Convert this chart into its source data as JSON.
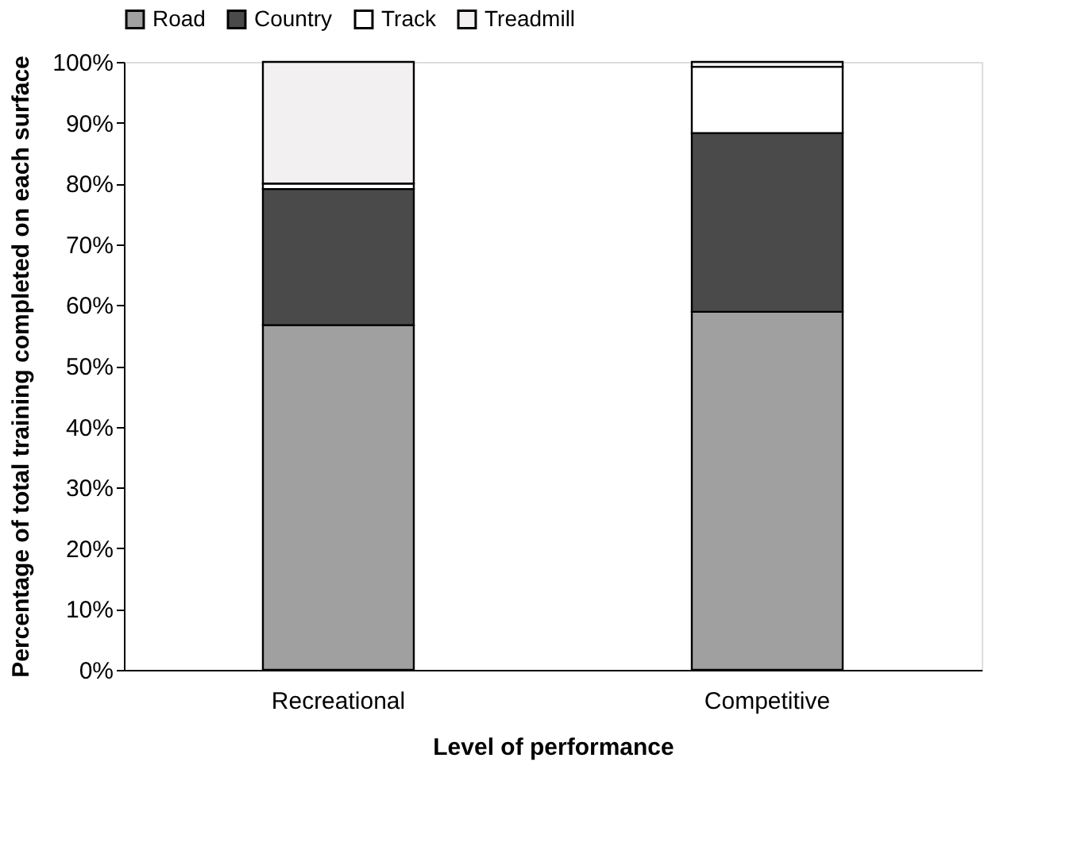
{
  "chart_data": {
    "type": "bar",
    "stacked": true,
    "categories": [
      "Recreational",
      "Competitive"
    ],
    "xlabel": "Level of performance",
    "ylabel": "Percentage of total training completed on each surface",
    "series": [
      {
        "name": "Road",
        "color": "#a0a0a0",
        "values": [
          56.7,
          58.9
        ]
      },
      {
        "name": "Country",
        "color": "#4a4a4a",
        "values": [
          22.4,
          29.4
        ]
      },
      {
        "name": "Track",
        "color": "#ffffff",
        "values": [
          0.9,
          10.9
        ]
      },
      {
        "name": "Treadmill",
        "color": "#f2f0f0",
        "values": [
          20.0,
          0.8
        ]
      }
    ],
    "ylim": [
      0,
      100
    ],
    "yticks": [
      {
        "value": 0,
        "label": "0%"
      },
      {
        "value": 10,
        "label": "10%"
      },
      {
        "value": 20,
        "label": "20%"
      },
      {
        "value": 30,
        "label": "30%"
      },
      {
        "value": 40,
        "label": "40%"
      },
      {
        "value": 50,
        "label": "50%"
      },
      {
        "value": 60,
        "label": "60%"
      },
      {
        "value": 70,
        "label": "70%"
      },
      {
        "value": 80,
        "label": "80%"
      },
      {
        "value": 90,
        "label": "90%"
      },
      {
        "value": 100,
        "label": "100%"
      }
    ],
    "grid": false,
    "legend": "top"
  }
}
